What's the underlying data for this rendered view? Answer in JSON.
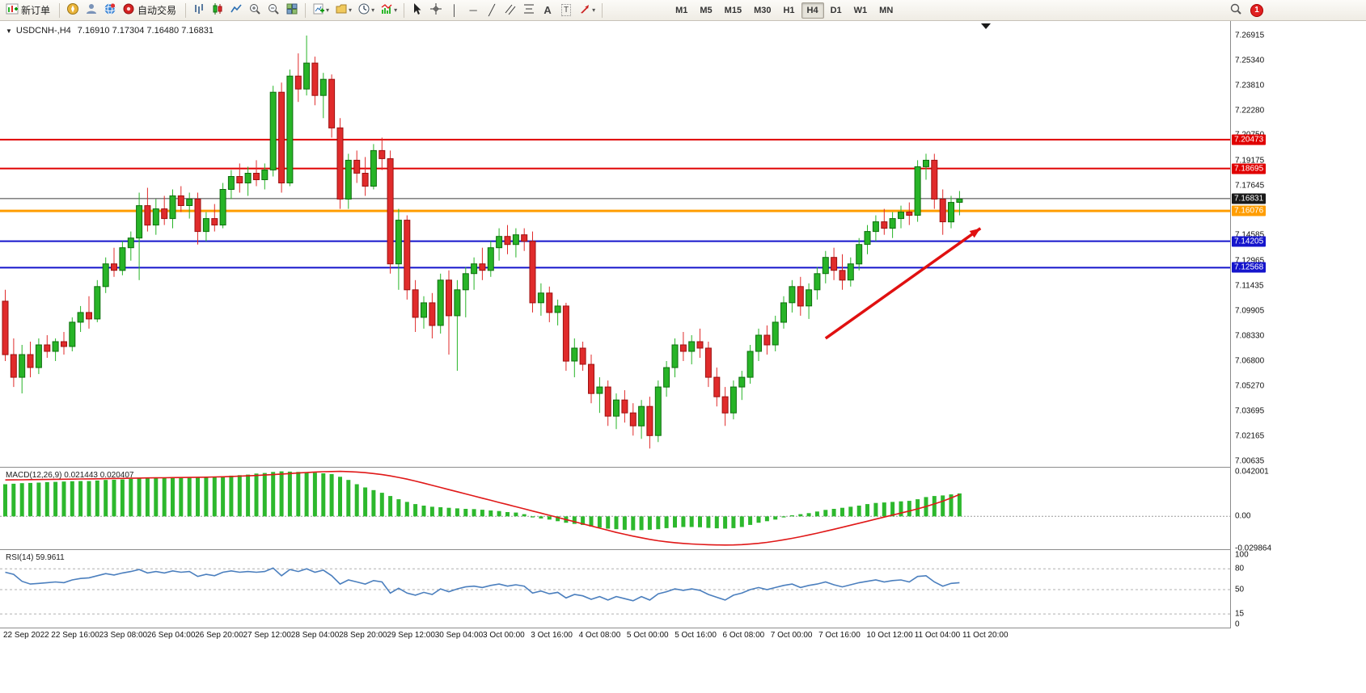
{
  "toolbar": {
    "new_order_label": "新订单",
    "autotrade_label": "自动交易",
    "timeframes": [
      "M1",
      "M5",
      "M15",
      "M30",
      "H1",
      "H4",
      "D1",
      "W1",
      "MN"
    ],
    "active_timeframe": "H4",
    "notification_badge": "1",
    "icons": [
      "new-order-chart-icon",
      "navigator-icon",
      "profile-icon",
      "community-icon",
      "autotrade-icon",
      "bar-chart-icon",
      "candlestick-chart-icon",
      "line-chart-icon",
      "zoom-in-icon",
      "zoom-out-icon",
      "tile-windows-icon",
      "new-chart-icon",
      "profiles-icon",
      "clock-icon",
      "indicators-icon",
      "cursor-icon",
      "crosshair-icon",
      "vertical-line-icon",
      "horizontal-line-icon",
      "trendline-icon",
      "channel-icon",
      "fibonacci-icon",
      "text-icon",
      "text-label-icon",
      "arrows-icon",
      "search-icon",
      "notification-badge"
    ]
  },
  "chart": {
    "title": "USDCNH-,H4",
    "ohlc_text": "7.16910 7.17304 7.16480 7.16831"
  },
  "chart_data": {
    "type": "candlestick",
    "symbol": "USDCNH-",
    "timeframe": "H4",
    "current": {
      "open": "7.16910",
      "high": "7.17304",
      "low": "7.16480",
      "close": "7.16831"
    },
    "up_color": "#27b427",
    "up_border": "#0e6e0e",
    "down_color": "#e02b2b",
    "down_border": "#9d1010",
    "price_axis": {
      "min": 7.00635,
      "max": 7.26915,
      "labels": [
        "7.26915",
        "7.25340",
        "7.23810",
        "7.22280",
        "7.20750",
        "7.19175",
        "7.17645",
        "7.16115",
        "7.14585",
        "7.12965",
        "7.11435",
        "7.09905",
        "7.08330",
        "7.06800",
        "7.05270",
        "7.03695",
        "7.02165",
        "7.00635"
      ]
    },
    "time_labels": [
      "22 Sep 2022",
      "22 Sep 16:00",
      "23 Sep 08:00",
      "26 Sep 04:00",
      "26 Sep 20:00",
      "27 Sep 12:00",
      "28 Sep 04:00",
      "28 Sep 20:00",
      "29 Sep 12:00",
      "30 Sep 04:00",
      "3 Oct 00:00",
      "3 Oct 16:00",
      "4 Oct 08:00",
      "5 Oct 00:00",
      "5 Oct 16:00",
      "6 Oct 08:00",
      "7 Oct 00:00",
      "7 Oct 16:00",
      "10 Oct 12:00",
      "11 Oct 04:00",
      "11 Oct 20:00"
    ],
    "hlines": [
      {
        "price": 7.20473,
        "label": "7.20473",
        "color": "#e00000",
        "width": 2
      },
      {
        "price": 7.18695,
        "label": "7.18695",
        "color": "#e00000",
        "width": 2
      },
      {
        "price": 7.16076,
        "label": "7.16076",
        "color": "#ff9d00",
        "width": 3
      },
      {
        "price": 7.14205,
        "label": "7.14205",
        "color": "#1515cc",
        "width": 2
      },
      {
        "price": 7.12568,
        "label": "7.12568",
        "color": "#1515cc",
        "width": 2
      }
    ],
    "current_price_line": {
      "price": 7.16831,
      "label": "7.16831",
      "color": "#3a3a3a",
      "width": 1,
      "tag_color": "#1a1a1a"
    },
    "trend_arrow": {
      "from_bar": 98,
      "from_price": 7.082,
      "to_bar": 116.5,
      "to_price": 7.15,
      "color": "#e01010"
    },
    "candles": [
      [
        7.105,
        7.112,
        7.068,
        7.072
      ],
      [
        7.072,
        7.082,
        7.052,
        7.058
      ],
      [
        7.058,
        7.078,
        7.048,
        7.072
      ],
      [
        7.072,
        7.08,
        7.058,
        7.064
      ],
      [
        7.064,
        7.082,
        7.06,
        7.078
      ],
      [
        7.078,
        7.084,
        7.07,
        7.074
      ],
      [
        7.074,
        7.082,
        7.068,
        7.08
      ],
      [
        7.08,
        7.086,
        7.072,
        7.077
      ],
      [
        7.077,
        7.095,
        7.074,
        7.092
      ],
      [
        7.092,
        7.102,
        7.086,
        7.098
      ],
      [
        7.098,
        7.108,
        7.088,
        7.094
      ],
      [
        7.094,
        7.118,
        7.092,
        7.114
      ],
      [
        7.114,
        7.132,
        7.11,
        7.128
      ],
      [
        7.128,
        7.138,
        7.12,
        7.124
      ],
      [
        7.124,
        7.142,
        7.121,
        7.138
      ],
      [
        7.138,
        7.148,
        7.13,
        7.144
      ],
      [
        7.144,
        7.172,
        7.118,
        7.164
      ],
      [
        7.164,
        7.175,
        7.148,
        7.152
      ],
      [
        7.152,
        7.168,
        7.146,
        7.162
      ],
      [
        7.162,
        7.17,
        7.152,
        7.156
      ],
      [
        7.156,
        7.174,
        7.15,
        7.17
      ],
      [
        7.17,
        7.176,
        7.16,
        7.164
      ],
      [
        7.164,
        7.172,
        7.156,
        7.168
      ],
      [
        7.168,
        7.172,
        7.14,
        7.148
      ],
      [
        7.148,
        7.16,
        7.142,
        7.156
      ],
      [
        7.156,
        7.165,
        7.148,
        7.152
      ],
      [
        7.152,
        7.178,
        7.15,
        7.174
      ],
      [
        7.174,
        7.186,
        7.168,
        7.182
      ],
      [
        7.182,
        7.19,
        7.172,
        7.178
      ],
      [
        7.178,
        7.188,
        7.17,
        7.184
      ],
      [
        7.184,
        7.192,
        7.176,
        7.18
      ],
      [
        7.18,
        7.19,
        7.174,
        7.186
      ],
      [
        7.186,
        7.238,
        7.182,
        7.234
      ],
      [
        7.234,
        7.24,
        7.172,
        7.178
      ],
      [
        7.178,
        7.248,
        7.176,
        7.244
      ],
      [
        7.244,
        7.258,
        7.228,
        7.236
      ],
      [
        7.236,
        7.269,
        7.232,
        7.252
      ],
      [
        7.252,
        7.256,
        7.226,
        7.232
      ],
      [
        7.232,
        7.246,
        7.218,
        7.242
      ],
      [
        7.242,
        7.245,
        7.206,
        7.212
      ],
      [
        7.212,
        7.218,
        7.162,
        7.168
      ],
      [
        7.168,
        7.196,
        7.162,
        7.192
      ],
      [
        7.192,
        7.198,
        7.178,
        7.184
      ],
      [
        7.184,
        7.194,
        7.17,
        7.176
      ],
      [
        7.176,
        7.202,
        7.174,
        7.198
      ],
      [
        7.198,
        7.206,
        7.186,
        7.193
      ],
      [
        7.193,
        7.198,
        7.122,
        7.128
      ],
      [
        7.128,
        7.162,
        7.112,
        7.155
      ],
      [
        7.155,
        7.158,
        7.106,
        7.112
      ],
      [
        7.112,
        7.118,
        7.086,
        7.095
      ],
      [
        7.095,
        7.108,
        7.088,
        7.104
      ],
      [
        7.104,
        7.11,
        7.082,
        7.09
      ],
      [
        7.09,
        7.122,
        7.085,
        7.118
      ],
      [
        7.118,
        7.124,
        7.072,
        7.096
      ],
      [
        7.096,
        7.118,
        7.062,
        7.112
      ],
      [
        7.112,
        7.126,
        7.095,
        7.122
      ],
      [
        7.122,
        7.132,
        7.112,
        7.128
      ],
      [
        7.128,
        7.138,
        7.118,
        7.124
      ],
      [
        7.124,
        7.142,
        7.12,
        7.138
      ],
      [
        7.138,
        7.15,
        7.13,
        7.145
      ],
      [
        7.145,
        7.152,
        7.134,
        7.14
      ],
      [
        7.14,
        7.15,
        7.132,
        7.146
      ],
      [
        7.146,
        7.15,
        7.136,
        7.142
      ],
      [
        7.142,
        7.148,
        7.098,
        7.104
      ],
      [
        7.104,
        7.116,
        7.096,
        7.11
      ],
      [
        7.11,
        7.114,
        7.092,
        7.098
      ],
      [
        7.098,
        7.106,
        7.09,
        7.102
      ],
      [
        7.102,
        7.104,
        7.062,
        7.068
      ],
      [
        7.068,
        7.082,
        7.058,
        7.076
      ],
      [
        7.076,
        7.08,
        7.062,
        7.066
      ],
      [
        7.066,
        7.072,
        7.042,
        7.048
      ],
      [
        7.048,
        7.058,
        7.036,
        7.052
      ],
      [
        7.052,
        7.056,
        7.028,
        7.034
      ],
      [
        7.034,
        7.048,
        7.026,
        7.044
      ],
      [
        7.044,
        7.05,
        7.03,
        7.036
      ],
      [
        7.036,
        7.042,
        7.022,
        7.028
      ],
      [
        7.028,
        7.044,
        7.02,
        7.04
      ],
      [
        7.04,
        7.046,
        7.014,
        7.022
      ],
      [
        7.022,
        7.056,
        7.018,
        7.052
      ],
      [
        7.052,
        7.068,
        7.046,
        7.064
      ],
      [
        7.064,
        7.082,
        7.058,
        7.078
      ],
      [
        7.078,
        7.086,
        7.068,
        7.074
      ],
      [
        7.074,
        7.084,
        7.066,
        7.08
      ],
      [
        7.08,
        7.088,
        7.07,
        7.076
      ],
      [
        7.076,
        7.08,
        7.052,
        7.058
      ],
      [
        7.058,
        7.064,
        7.04,
        7.046
      ],
      [
        7.046,
        7.052,
        7.028,
        7.036
      ],
      [
        7.036,
        7.056,
        7.032,
        7.052
      ],
      [
        7.052,
        7.062,
        7.044,
        7.058
      ],
      [
        7.058,
        7.078,
        7.054,
        7.074
      ],
      [
        7.074,
        7.088,
        7.068,
        7.084
      ],
      [
        7.084,
        7.09,
        7.072,
        7.078
      ],
      [
        7.078,
        7.096,
        7.074,
        7.092
      ],
      [
        7.092,
        7.108,
        7.088,
        7.104
      ],
      [
        7.104,
        7.118,
        7.098,
        7.114
      ],
      [
        7.114,
        7.12,
        7.096,
        7.102
      ],
      [
        7.102,
        7.116,
        7.094,
        7.112
      ],
      [
        7.112,
        7.126,
        7.106,
        7.122
      ],
      [
        7.122,
        7.136,
        7.116,
        7.132
      ],
      [
        7.132,
        7.138,
        7.118,
        7.124
      ],
      [
        7.124,
        7.134,
        7.112,
        7.118
      ],
      [
        7.118,
        7.132,
        7.114,
        7.128
      ],
      [
        7.128,
        7.144,
        7.124,
        7.14
      ],
      [
        7.14,
        7.152,
        7.134,
        7.148
      ],
      [
        7.148,
        7.158,
        7.142,
        7.154
      ],
      [
        7.154,
        7.162,
        7.146,
        7.15
      ],
      [
        7.15,
        7.16,
        7.144,
        7.156
      ],
      [
        7.156,
        7.164,
        7.15,
        7.16
      ],
      [
        7.16,
        7.166,
        7.152,
        7.158
      ],
      [
        7.158,
        7.192,
        7.154,
        7.188
      ],
      [
        7.188,
        7.196,
        7.18,
        7.192
      ],
      [
        7.192,
        7.196,
        7.162,
        7.168
      ],
      [
        7.168,
        7.174,
        7.146,
        7.154
      ],
      [
        7.154,
        7.17,
        7.15,
        7.166
      ],
      [
        7.166,
        7.173,
        7.158,
        7.168
      ]
    ],
    "macd": {
      "label": "MACD(12,26,9) 0.021443 0.020407",
      "params": "12,26,9",
      "value_main": "0.021443",
      "value_signal": "0.020407",
      "hist_color": "#2db82d",
      "signal_color": "#e01818",
      "axis_labels": [
        {
          "text": "0.042001",
          "value": 0.042001
        },
        {
          "text": "0.00",
          "value": 0.0
        },
        {
          "text": "-0.029864",
          "value": -0.029864
        }
      ],
      "histogram": [
        0.03,
        0.0305,
        0.031,
        0.0312,
        0.0315,
        0.032,
        0.0322,
        0.0325,
        0.0328,
        0.033,
        0.033,
        0.0335,
        0.034,
        0.0342,
        0.0345,
        0.035,
        0.0355,
        0.0355,
        0.036,
        0.036,
        0.036,
        0.0362,
        0.0365,
        0.0365,
        0.0368,
        0.037,
        0.0375,
        0.038,
        0.0385,
        0.039,
        0.04,
        0.0405,
        0.0415,
        0.042,
        0.0418,
        0.0415,
        0.0412,
        0.0408,
        0.0402,
        0.0395,
        0.037,
        0.034,
        0.03,
        0.027,
        0.0245,
        0.022,
        0.019,
        0.016,
        0.0135,
        0.0115,
        0.01,
        0.009,
        0.0085,
        0.008,
        0.0075,
        0.007,
        0.0068,
        0.0062,
        0.0055,
        0.005,
        0.004,
        0.0035,
        0.002,
        -0.001,
        -0.002,
        -0.003,
        -0.0045,
        -0.006,
        -0.007,
        -0.008,
        -0.0095,
        -0.0105,
        -0.0115,
        -0.012,
        -0.0125,
        -0.013,
        -0.0128,
        -0.0125,
        -0.012,
        -0.011,
        -0.0105,
        -0.01,
        -0.01,
        -0.0102,
        -0.0108,
        -0.0112,
        -0.0115,
        -0.011,
        -0.01,
        -0.008,
        -0.006,
        -0.0045,
        -0.003,
        -0.001,
        0.001,
        0.002,
        0.003,
        0.0045,
        0.006,
        0.007,
        0.008,
        0.009,
        0.01,
        0.0115,
        0.0125,
        0.013,
        0.0135,
        0.014,
        0.0145,
        0.016,
        0.018,
        0.019,
        0.0195,
        0.0205,
        0.0214
      ],
      "signal": [
        0.034,
        0.0341,
        0.0342,
        0.0343,
        0.0344,
        0.0345,
        0.0346,
        0.0347,
        0.0348,
        0.0349,
        0.035,
        0.0351,
        0.0352,
        0.0354,
        0.0355,
        0.0356,
        0.0358,
        0.0359,
        0.036,
        0.0361,
        0.0362,
        0.0363,
        0.0364,
        0.0365,
        0.0366,
        0.0368,
        0.037,
        0.0373,
        0.0376,
        0.0379,
        0.0382,
        0.0386,
        0.039,
        0.0395,
        0.04,
        0.0405,
        0.041,
        0.0414,
        0.0417,
        0.0419,
        0.042,
        0.0418,
        0.0414,
        0.0408,
        0.04,
        0.039,
        0.0378,
        0.0364,
        0.0348,
        0.033,
        0.031,
        0.029,
        0.027,
        0.025,
        0.023,
        0.021,
        0.019,
        0.017,
        0.015,
        0.013,
        0.011,
        0.009,
        0.007,
        0.005,
        0.003,
        0.001,
        -0.001,
        -0.003,
        -0.005,
        -0.007,
        -0.009,
        -0.011,
        -0.013,
        -0.015,
        -0.0168,
        -0.0185,
        -0.02,
        -0.0215,
        -0.0228,
        -0.0238,
        -0.0246,
        -0.0253,
        -0.0258,
        -0.0262,
        -0.0265,
        -0.0267,
        -0.0268,
        -0.0267,
        -0.0264,
        -0.0259,
        -0.0252,
        -0.0243,
        -0.0232,
        -0.0219,
        -0.0205,
        -0.019,
        -0.0174,
        -0.0157,
        -0.0139,
        -0.0121,
        -0.0102,
        -0.0083,
        -0.0064,
        -0.0045,
        -0.0026,
        -0.0007,
        0.0012,
        0.0031,
        0.005,
        0.007,
        0.0092,
        0.0116,
        0.0142,
        0.0172,
        0.0204
      ]
    },
    "rsi": {
      "label": "RSI(14) 59.9611",
      "period": 14,
      "value": "59.9611",
      "color": "#4b7fbe",
      "levels": [
        80,
        50,
        15
      ],
      "axis_labels": [
        {
          "text": "100",
          "value": 100
        },
        {
          "text": "80",
          "value": 80
        },
        {
          "text": "50",
          "value": 50
        },
        {
          "text": "15",
          "value": 15
        },
        {
          "text": "0",
          "value": 0
        }
      ],
      "values": [
        75,
        72,
        62,
        58,
        59,
        60,
        61,
        60,
        64,
        66,
        67,
        70,
        73,
        71,
        74,
        76,
        79,
        74,
        76,
        74,
        77,
        75,
        76,
        69,
        72,
        70,
        75,
        77,
        75,
        76,
        75,
        76,
        81,
        70,
        79,
        76,
        80,
        75,
        78,
        70,
        58,
        64,
        61,
        58,
        63,
        61,
        45,
        52,
        45,
        42,
        46,
        43,
        51,
        47,
        51,
        54,
        55,
        53,
        56,
        58,
        55,
        57,
        55,
        45,
        48,
        44,
        46,
        38,
        43,
        41,
        36,
        40,
        35,
        40,
        37,
        34,
        40,
        35,
        44,
        47,
        51,
        49,
        51,
        49,
        43,
        39,
        35,
        42,
        45,
        50,
        53,
        50,
        53,
        56,
        58,
        53,
        56,
        58,
        61,
        57,
        54,
        57,
        60,
        62,
        64,
        61,
        63,
        64,
        61,
        69,
        70,
        61,
        55,
        59,
        60
      ]
    }
  }
}
